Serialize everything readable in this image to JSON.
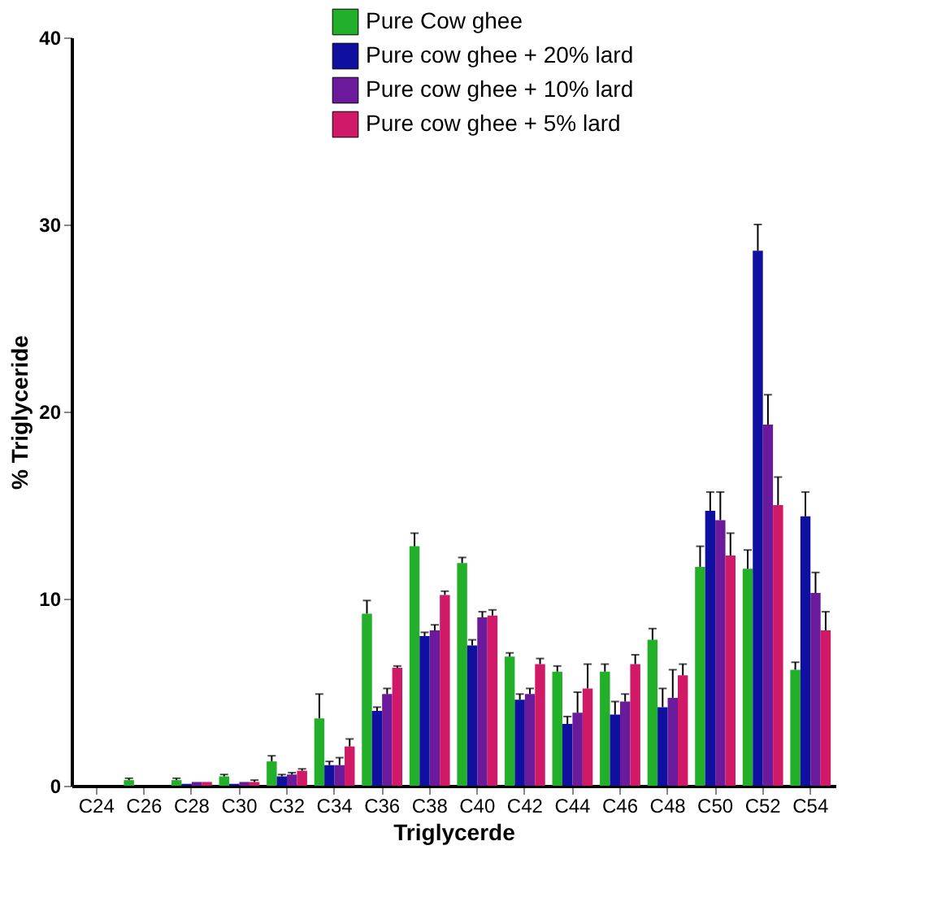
{
  "chart_data": {
    "type": "bar",
    "xlabel": "Triglycerde",
    "ylabel": "% Triglyceride",
    "categories": [
      "C24",
      "C26",
      "C28",
      "C30",
      "C32",
      "C34",
      "C36",
      "C38",
      "C40",
      "C42",
      "C44",
      "C46",
      "C48",
      "C50",
      "C52",
      "C54"
    ],
    "series": [
      {
        "name": "Pure Cow ghee",
        "color": "#22b02a",
        "values": [
          0,
          0.3,
          0.3,
          0.5,
          1.3,
          3.6,
          9.2,
          12.8,
          11.9,
          6.9,
          6.1,
          6.1,
          7.8,
          11.7,
          11.6,
          6.2
        ],
        "errors": [
          null,
          0.1,
          0.1,
          0.1,
          0.3,
          1.3,
          0.7,
          0.7,
          0.3,
          0.2,
          0.3,
          0.4,
          0.6,
          1.1,
          1.0,
          0.4
        ]
      },
      {
        "name": "Pure cow ghee + 20% lard",
        "color": "#1010a0",
        "values": [
          0,
          0,
          0.1,
          0.1,
          0.5,
          1.1,
          4.0,
          8.0,
          7.5,
          4.6,
          3.3,
          3.8,
          4.2,
          14.7,
          28.6,
          14.4
        ],
        "errors": [
          null,
          null,
          null,
          null,
          0.1,
          0.2,
          0.2,
          0.2,
          0.3,
          0.3,
          0.4,
          0.7,
          1.0,
          1.0,
          1.4,
          1.3
        ]
      },
      {
        "name": "Pure cow ghee + 10% lard",
        "color": "#6a1a9a",
        "values": [
          0,
          0,
          0.2,
          0.2,
          0.6,
          1.1,
          4.9,
          8.3,
          9.0,
          4.9,
          3.9,
          4.5,
          4.7,
          14.2,
          19.3,
          10.3
        ],
        "errors": [
          null,
          null,
          null,
          null,
          0.1,
          0.4,
          0.3,
          0.3,
          0.3,
          0.3,
          1.1,
          0.4,
          1.5,
          1.5,
          1.6,
          1.1
        ]
      },
      {
        "name": "Pure cow ghee + 5% lard",
        "color": "#d01a68",
        "values": [
          0,
          0,
          0.2,
          0.2,
          0.8,
          2.1,
          6.3,
          10.2,
          9.1,
          6.5,
          5.2,
          6.5,
          5.9,
          12.3,
          15.0,
          8.3
        ],
        "errors": [
          null,
          null,
          null,
          0.1,
          0.1,
          0.4,
          0.1,
          0.2,
          0.3,
          0.3,
          1.3,
          0.5,
          0.6,
          1.2,
          1.5,
          1.0
        ]
      }
    ],
    "ylim": [
      0,
      40
    ],
    "yticks": [
      0,
      10,
      20,
      30,
      40
    ],
    "grid": false,
    "legend": "top"
  }
}
